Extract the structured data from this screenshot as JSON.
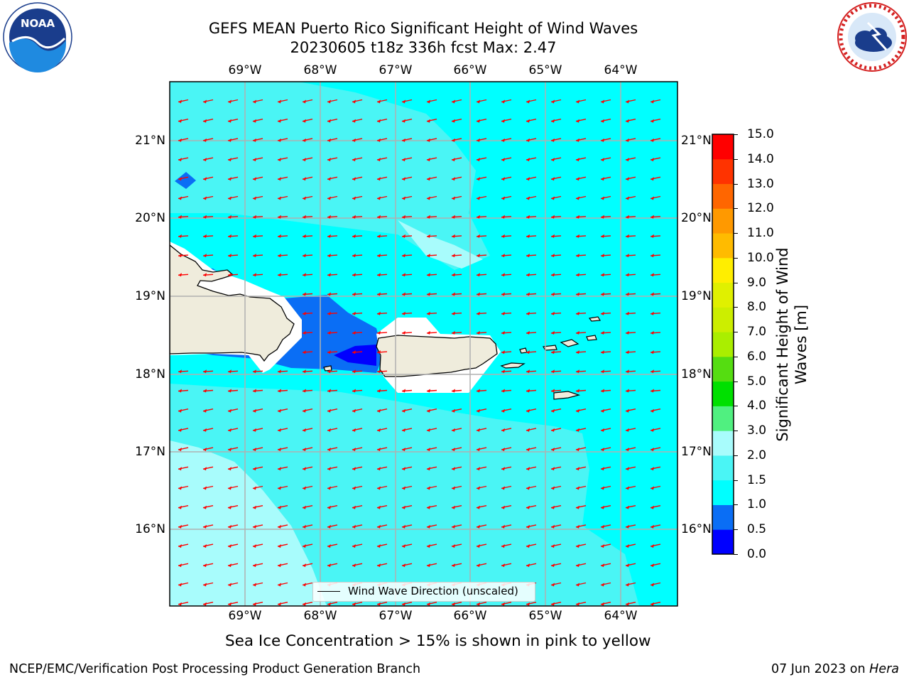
{
  "header": {
    "title_line1": "GEFS MEAN Puerto Rico Significant Height of Wind Waves",
    "title_line2": "20230605 t18z 336h fcst   Max: 2.47"
  },
  "logos": {
    "noaa_text": "NOAA",
    "noaa_ring_text": "NATIONAL OCEANIC AND ATMOSPHERIC ADMINISTRATION · U.S. DEPARTMENT OF COMMERCE",
    "nws_ring_text": "NATIONAL WEATHER SERVICE"
  },
  "map": {
    "lon_ticks": [
      "69°W",
      "68°W",
      "67°W",
      "66°W",
      "65°W",
      "64°W"
    ],
    "lat_ticks": [
      "21°N",
      "20°N",
      "19°N",
      "18°N",
      "17°N",
      "16°N"
    ],
    "legend_label": "Wind Wave Direction (unscaled)",
    "colors": {
      "land": "#efecdc",
      "arrow": "#ff0000",
      "grid": "#b0b0b0"
    }
  },
  "colorbar": {
    "label": "Significant Height of Wind Waves [m]",
    "ticks": [
      "15.0",
      "14.0",
      "13.0",
      "12.0",
      "11.0",
      "10.0",
      "9.0",
      "8.0",
      "7.0",
      "6.0",
      "5.0",
      "4.0",
      "3.0",
      "2.0",
      "1.5",
      "1.0",
      "0.5",
      "0.0"
    ],
    "levels": [
      {
        "from": 0.0,
        "to": 0.5,
        "color": "#0000ff"
      },
      {
        "from": 0.5,
        "to": 1.0,
        "color": "#0a6ef5"
      },
      {
        "from": 1.0,
        "to": 1.5,
        "color": "#00ffff"
      },
      {
        "from": 1.5,
        "to": 2.0,
        "color": "#4af5f5"
      },
      {
        "from": 2.0,
        "to": 3.0,
        "color": "#a8fcfc"
      },
      {
        "from": 3.0,
        "to": 4.0,
        "color": "#50f080"
      },
      {
        "from": 4.0,
        "to": 5.0,
        "color": "#00e000"
      },
      {
        "from": 5.0,
        "to": 6.0,
        "color": "#55dd11"
      },
      {
        "from": 6.0,
        "to": 7.0,
        "color": "#aaee00"
      },
      {
        "from": 7.0,
        "to": 8.0,
        "color": "#ccee00"
      },
      {
        "from": 8.0,
        "to": 9.0,
        "color": "#e0f000"
      },
      {
        "from": 9.0,
        "to": 10.0,
        "color": "#ffee00"
      },
      {
        "from": 10.0,
        "to": 11.0,
        "color": "#ffbb00"
      },
      {
        "from": 11.0,
        "to": 12.0,
        "color": "#ff9900"
      },
      {
        "from": 12.0,
        "to": 13.0,
        "color": "#ff6600"
      },
      {
        "from": 13.0,
        "to": 14.0,
        "color": "#ff3300"
      },
      {
        "from": 14.0,
        "to": 15.0,
        "color": "#ff0000"
      }
    ]
  },
  "captions": {
    "sea_ice": "Sea Ice Concentration > 15% is shown in pink to yellow",
    "branch": "NCEP/EMC/Verification Post Processing Product Generation Branch",
    "date": "07 Jun 2023 on ",
    "host": "Hera"
  }
}
